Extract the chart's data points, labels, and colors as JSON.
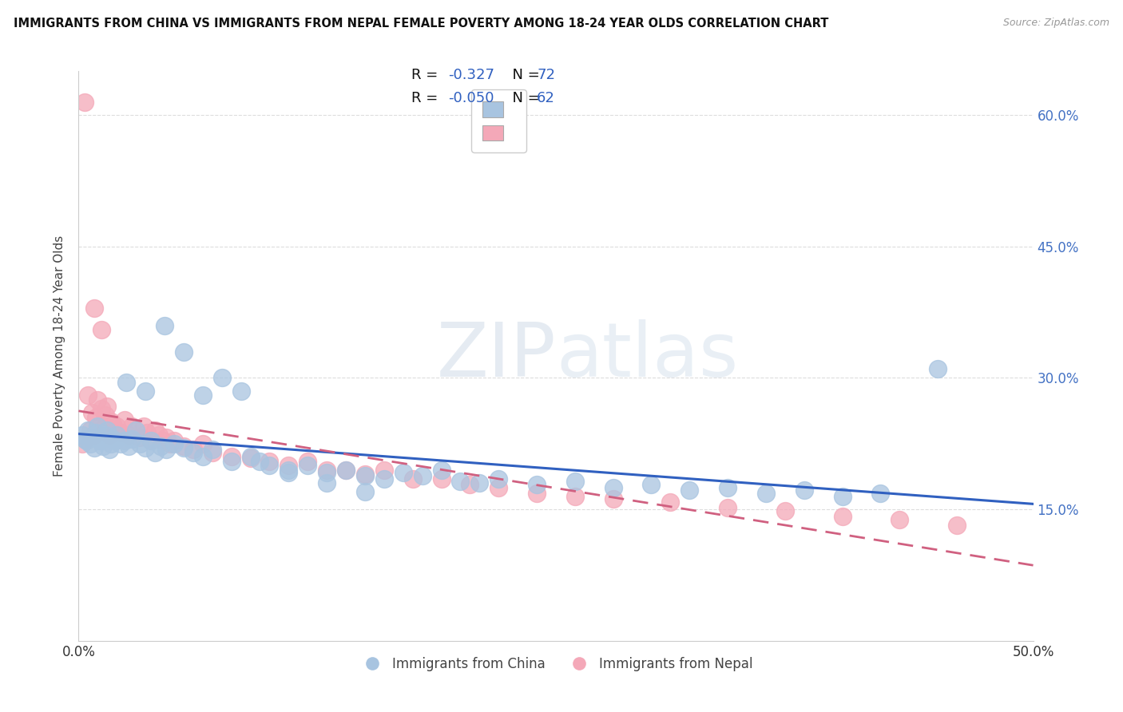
{
  "title": "IMMIGRANTS FROM CHINA VS IMMIGRANTS FROM NEPAL FEMALE POVERTY AMONG 18-24 YEAR OLDS CORRELATION CHART",
  "source": "Source: ZipAtlas.com",
  "ylabel": "Female Poverty Among 18-24 Year Olds",
  "xlim": [
    0.0,
    0.5
  ],
  "ylim": [
    0.0,
    0.65
  ],
  "ytick_values": [
    0.15,
    0.3,
    0.45,
    0.6
  ],
  "ytick_labels": [
    "15.0%",
    "30.0%",
    "45.0%",
    "60.0%"
  ],
  "watermark_zip": "ZIP",
  "watermark_atlas": "atlas",
  "legend_china_r": "-0.327",
  "legend_china_n": "72",
  "legend_nepal_r": "-0.050",
  "legend_nepal_n": "62",
  "china_color": "#a8c4e0",
  "nepal_color": "#f4a8b8",
  "china_line_color": "#3060c0",
  "nepal_line_color": "#d06080",
  "background_color": "#ffffff",
  "grid_color": "#dddddd",
  "china_x": [
    0.002,
    0.003,
    0.004,
    0.005,
    0.006,
    0.007,
    0.008,
    0.009,
    0.01,
    0.011,
    0.012,
    0.013,
    0.014,
    0.015,
    0.016,
    0.017,
    0.018,
    0.019,
    0.02,
    0.022,
    0.024,
    0.026,
    0.028,
    0.03,
    0.032,
    0.035,
    0.038,
    0.04,
    0.043,
    0.046,
    0.05,
    0.055,
    0.06,
    0.065,
    0.07,
    0.08,
    0.09,
    0.1,
    0.11,
    0.12,
    0.13,
    0.14,
    0.15,
    0.16,
    0.17,
    0.18,
    0.19,
    0.2,
    0.21,
    0.22,
    0.24,
    0.26,
    0.28,
    0.3,
    0.32,
    0.34,
    0.36,
    0.38,
    0.4,
    0.42,
    0.025,
    0.035,
    0.045,
    0.055,
    0.065,
    0.075,
    0.085,
    0.095,
    0.11,
    0.13,
    0.15,
    0.45
  ],
  "china_y": [
    0.235,
    0.23,
    0.228,
    0.24,
    0.225,
    0.232,
    0.22,
    0.238,
    0.245,
    0.228,
    0.23,
    0.222,
    0.235,
    0.24,
    0.218,
    0.225,
    0.23,
    0.228,
    0.235,
    0.225,
    0.228,
    0.222,
    0.23,
    0.24,
    0.225,
    0.22,
    0.228,
    0.215,
    0.222,
    0.218,
    0.225,
    0.22,
    0.215,
    0.21,
    0.218,
    0.205,
    0.21,
    0.2,
    0.195,
    0.2,
    0.192,
    0.195,
    0.188,
    0.185,
    0.192,
    0.188,
    0.195,
    0.182,
    0.18,
    0.185,
    0.178,
    0.182,
    0.175,
    0.178,
    0.172,
    0.175,
    0.168,
    0.172,
    0.165,
    0.168,
    0.295,
    0.285,
    0.36,
    0.33,
    0.28,
    0.3,
    0.285,
    0.205,
    0.192,
    0.18,
    0.17,
    0.31
  ],
  "nepal_x": [
    0.002,
    0.003,
    0.004,
    0.005,
    0.006,
    0.007,
    0.008,
    0.009,
    0.01,
    0.011,
    0.012,
    0.013,
    0.014,
    0.015,
    0.016,
    0.017,
    0.018,
    0.019,
    0.02,
    0.022,
    0.024,
    0.026,
    0.028,
    0.03,
    0.032,
    0.034,
    0.036,
    0.038,
    0.04,
    0.042,
    0.044,
    0.046,
    0.048,
    0.05,
    0.055,
    0.06,
    0.065,
    0.07,
    0.08,
    0.09,
    0.1,
    0.11,
    0.12,
    0.13,
    0.14,
    0.15,
    0.16,
    0.175,
    0.19,
    0.205,
    0.22,
    0.24,
    0.26,
    0.28,
    0.31,
    0.34,
    0.37,
    0.4,
    0.43,
    0.46,
    0.008,
    0.012
  ],
  "nepal_y": [
    0.225,
    0.615,
    0.23,
    0.28,
    0.24,
    0.26,
    0.235,
    0.255,
    0.275,
    0.245,
    0.265,
    0.242,
    0.258,
    0.268,
    0.235,
    0.25,
    0.248,
    0.24,
    0.245,
    0.238,
    0.252,
    0.235,
    0.245,
    0.24,
    0.232,
    0.245,
    0.238,
    0.228,
    0.24,
    0.235,
    0.228,
    0.232,
    0.225,
    0.228,
    0.222,
    0.218,
    0.225,
    0.215,
    0.21,
    0.208,
    0.205,
    0.2,
    0.205,
    0.195,
    0.195,
    0.19,
    0.195,
    0.185,
    0.185,
    0.178,
    0.175,
    0.168,
    0.165,
    0.162,
    0.158,
    0.152,
    0.148,
    0.142,
    0.138,
    0.132,
    0.38,
    0.355
  ]
}
